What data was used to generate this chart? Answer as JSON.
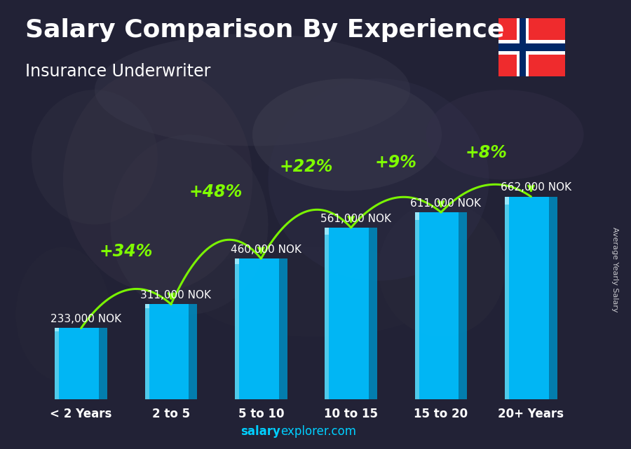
{
  "title": "Salary Comparison By Experience",
  "subtitle": "Insurance Underwriter",
  "ylabel": "Average Yearly Salary",
  "watermark_bold": "salary",
  "watermark_regular": "explorer.com",
  "categories": [
    "< 2 Years",
    "2 to 5",
    "5 to 10",
    "10 to 15",
    "15 to 20",
    "20+ Years"
  ],
  "values": [
    233000,
    311000,
    460000,
    561000,
    611000,
    662000
  ],
  "value_labels": [
    "233,000 NOK",
    "311,000 NOK",
    "460,000 NOK",
    "561,000 NOK",
    "611,000 NOK",
    "662,000 NOK"
  ],
  "pct_labels": [
    "+34%",
    "+48%",
    "+22%",
    "+9%",
    "+8%"
  ],
  "bar_color_main": "#00BFFF",
  "bar_color_light": "#55DDFF",
  "bar_color_dark": "#0088BB",
  "bar_color_highlight": "#AAEEFF",
  "bg_color": "#2a2a3e",
  "title_color": "#FFFFFF",
  "subtitle_color": "#FFFFFF",
  "value_label_color": "#FFFFFF",
  "pct_color": "#7FFF00",
  "arrow_color": "#7FFF00",
  "watermark_color": "#00CFFF",
  "title_fontsize": 26,
  "subtitle_fontsize": 17,
  "category_fontsize": 12,
  "value_fontsize": 11,
  "pct_fontsize": 17,
  "ylim": [
    0,
    820000
  ],
  "arc_heights": [
    130000,
    175000,
    155000,
    120000,
    100000
  ],
  "flag_red": "#EF2B2D",
  "flag_blue": "#002868",
  "flag_white": "#FFFFFF"
}
